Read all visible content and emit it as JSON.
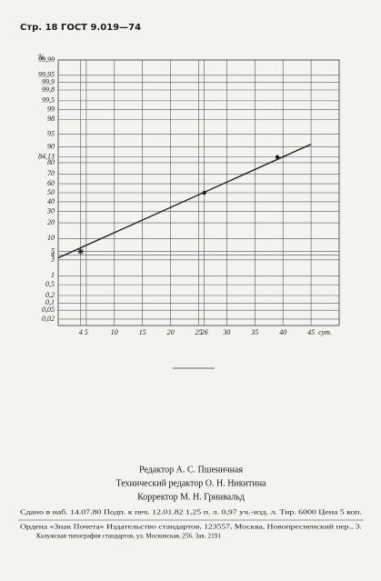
{
  "header": {
    "title": "Стр. 18 ГОСТ 9.019—74"
  },
  "chart_data": {
    "type": "line",
    "yscale": "probit",
    "ylabel": "%",
    "xlabel": "сут.",
    "xlim": [
      0,
      50
    ],
    "ylim": [
      0.01,
      99.99
    ],
    "grid": true,
    "xticks": [
      4,
      5,
      10,
      15,
      20,
      25,
      26,
      30,
      35,
      40,
      45
    ],
    "yticks": [
      {
        "value": 99.99,
        "label": "99,99"
      },
      {
        "value": 99.95,
        "label": "99,95"
      },
      {
        "value": 99.9,
        "label": "99,9"
      },
      {
        "value": 99.8,
        "label": "99,8"
      },
      {
        "value": 99.5,
        "label": "99,5"
      },
      99,
      98,
      95,
      90,
      {
        "value": 84.13,
        "label": "84,13"
      },
      80,
      70,
      60,
      50,
      40,
      30,
      20,
      10,
      5,
      4,
      3,
      1,
      {
        "value": 0.5,
        "label": "0,5"
      },
      {
        "value": 0.2,
        "label": "0,2"
      },
      {
        "value": 0.1,
        "label": "0,1"
      },
      {
        "value": 0.05,
        "label": "0,05"
      },
      {
        "value": 0.02,
        "label": "0,02"
      }
    ],
    "series": [
      {
        "color": "#1a1a1a",
        "x": [
          0,
          45
        ],
        "values": [
          3.4,
          91.3
        ]
      },
      {
        "color": "#1a1a1a",
        "x": [
          4,
          26,
          39
        ],
        "values": [
          5,
          50,
          84.13
        ],
        "markers": [
          "star",
          "dot",
          "dot"
        ]
      }
    ]
  },
  "editors": [
    "Редактор А. С. Пшеничная",
    "Технический редактор О. Н. Никитина",
    "Корректор М. Н. Гринвальд"
  ],
  "imprint": "Сдано в наб. 14.07.80 Подп. к печ. 12.01.82 1,25 п. л. 0,97 уч.-изд. л. Тир. 6000 Цена 5 коп.",
  "footer": [
    "Ордена «Знак Почета» Издательство стандартов, 123557, Москва, Новопресненский пер., 3.",
    "Калужская типография стандартов, ул. Московская, 256. Зак. 2191"
  ]
}
